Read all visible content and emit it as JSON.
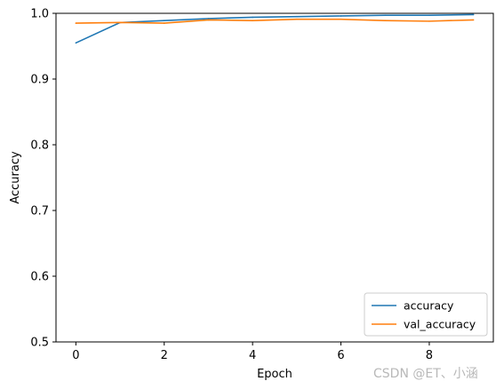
{
  "chart_data": {
    "type": "line",
    "xlabel": "Epoch",
    "ylabel": "Accuracy",
    "xlim": [
      -0.45,
      9.45
    ],
    "ylim": [
      0.5,
      1.0
    ],
    "x_ticks": [
      0,
      2,
      4,
      6,
      8
    ],
    "y_ticks": [
      0.5,
      0.6,
      0.7,
      0.8,
      0.9,
      1.0
    ],
    "x_tick_labels": [
      "0",
      "2",
      "4",
      "6",
      "8"
    ],
    "y_tick_labels": [
      "0.5",
      "0.6",
      "0.7",
      "0.8",
      "0.9",
      "1.0"
    ],
    "grid": false,
    "legend_position": "lower-right",
    "x": [
      0,
      1,
      2,
      3,
      4,
      5,
      6,
      7,
      8,
      9
    ],
    "series": [
      {
        "name": "accuracy",
        "color": "#1f77b4",
        "values": [
          0.955,
          0.986,
          0.989,
          0.992,
          0.994,
          0.995,
          0.996,
          0.997,
          0.997,
          0.998
        ]
      },
      {
        "name": "val_accuracy",
        "color": "#ff7f0e",
        "values": [
          0.985,
          0.986,
          0.985,
          0.99,
          0.989,
          0.991,
          0.991,
          0.989,
          0.988,
          0.99
        ]
      }
    ]
  },
  "watermark": "CSDN @ET、小涵"
}
